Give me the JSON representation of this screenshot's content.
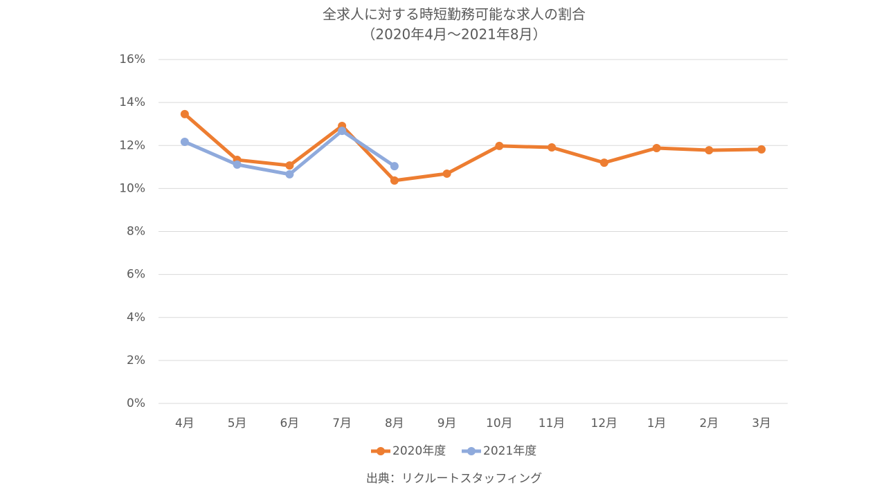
{
  "chart_data": {
    "type": "line",
    "title": "全求人に対する時短勤務可能な求人の割合",
    "subtitle": "（2020年4月～2021年8月）",
    "categories": [
      "4月",
      "5月",
      "6月",
      "7月",
      "8月",
      "9月",
      "10月",
      "11月",
      "12月",
      "1月",
      "2月",
      "3月"
    ],
    "series": [
      {
        "name": "2020年度",
        "color": "#ed7d31",
        "values": [
          13.46,
          11.33,
          11.07,
          12.91,
          10.37,
          10.69,
          11.98,
          11.91,
          11.2,
          11.88,
          11.78,
          11.82
        ]
      },
      {
        "name": "2021年度",
        "color": "#8faadc",
        "values": [
          12.17,
          11.11,
          10.66,
          12.68,
          11.04,
          null,
          null,
          null,
          null,
          null,
          null,
          null
        ]
      }
    ],
    "ylim": [
      0,
      16
    ],
    "yticks": [
      {
        "value": 0,
        "label": "0%"
      },
      {
        "value": 2,
        "label": "2%"
      },
      {
        "value": 4,
        "label": "4%"
      },
      {
        "value": 6,
        "label": "6%"
      },
      {
        "value": 8,
        "label": "8%"
      },
      {
        "value": 10,
        "label": "10%"
      },
      {
        "value": 12,
        "label": "12%"
      },
      {
        "value": 14,
        "label": "14%"
      },
      {
        "value": 16,
        "label": "16%"
      }
    ],
    "grid": true,
    "legend": "bottom",
    "source": "出典：リクルートスタッフィング"
  }
}
